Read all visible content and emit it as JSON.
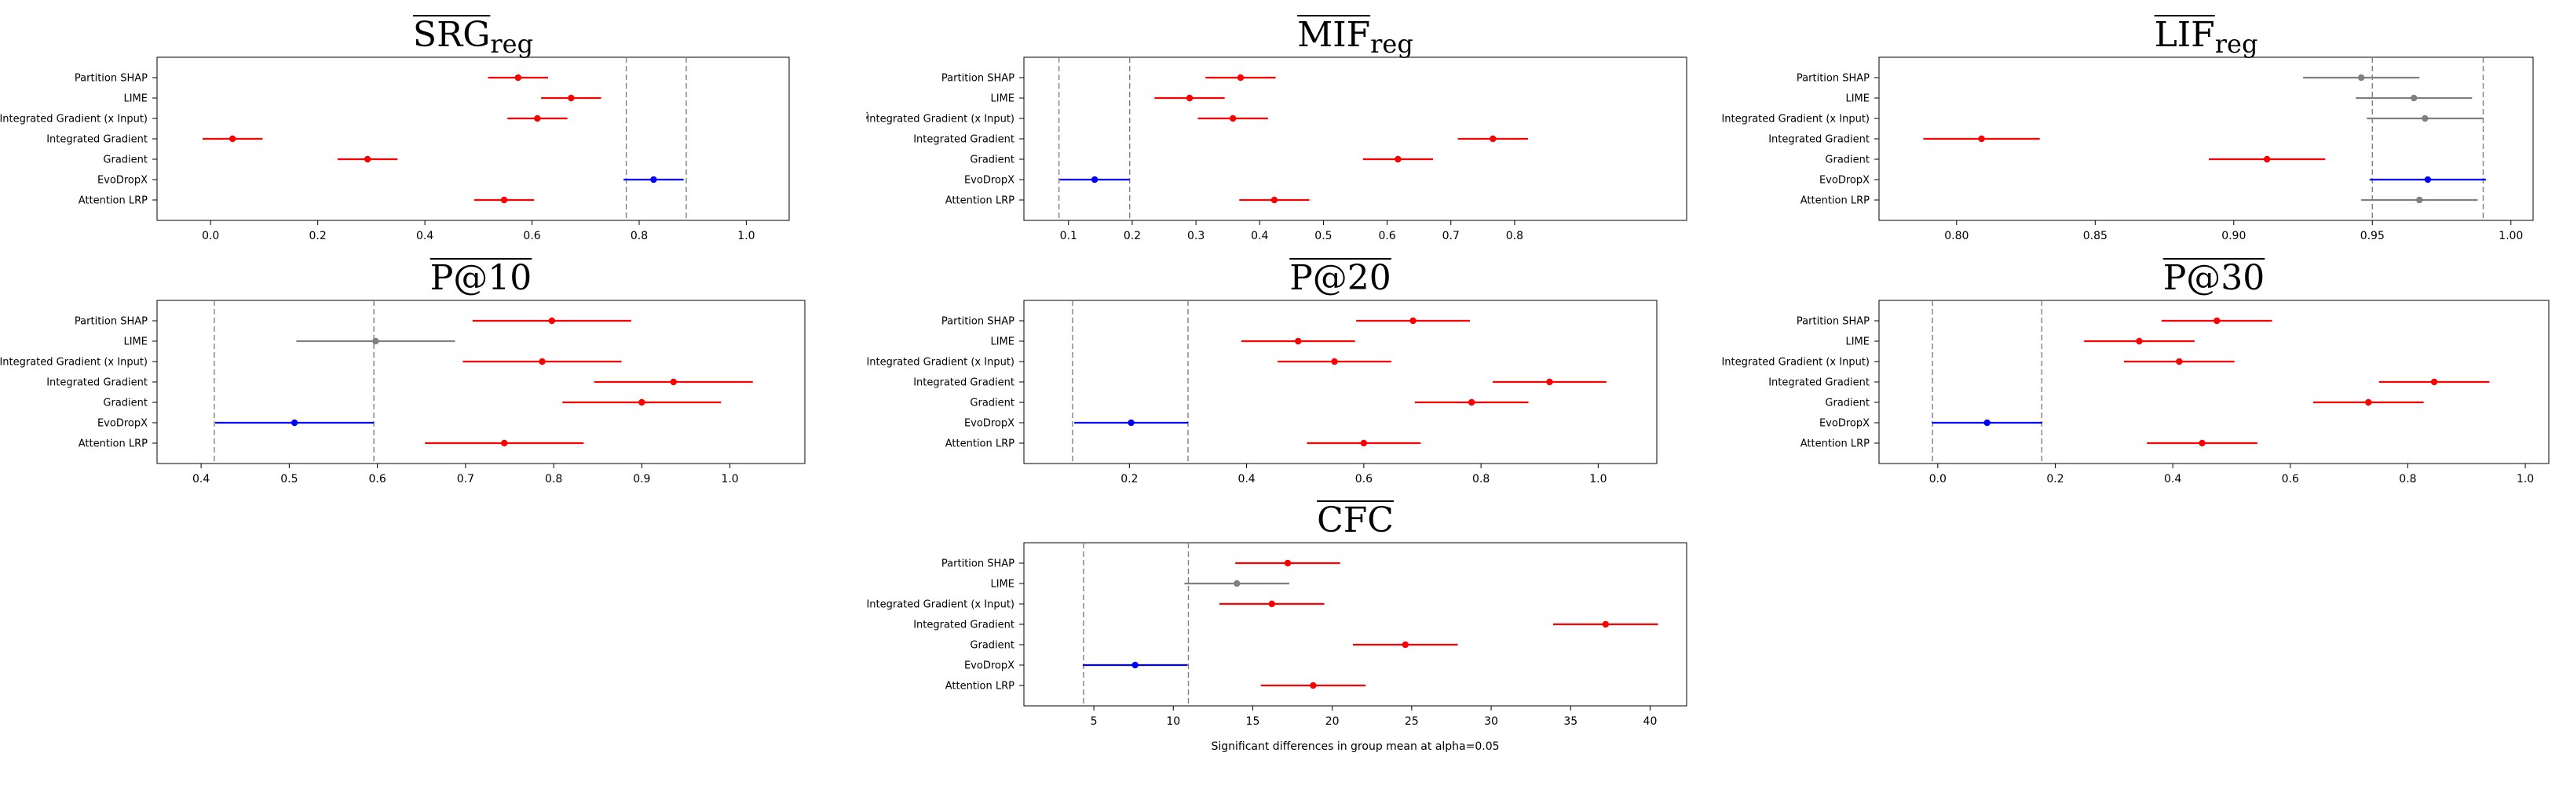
{
  "figure_note": ";",
  "chart_data": [
    {
      "type": "errorbar",
      "title": "SRG",
      "title_sub": "reg",
      "xlabel": "",
      "xlim": [
        -0.1,
        1.08
      ],
      "xticks": [
        0.0,
        0.2,
        0.4,
        0.6,
        0.8,
        1.0
      ],
      "xticklabels": [
        "0.0",
        "0.2",
        "0.4",
        "0.6",
        "0.8",
        "1.0"
      ],
      "ref_lines": [
        0.776,
        0.888
      ],
      "categories": [
        "Partition SHAP",
        "LIME",
        "Integrated Gradient (x Input)",
        "Integrated Gradient",
        "Gradient",
        "EvoDropX",
        "Attention LRP"
      ],
      "means": [
        0.574,
        0.673,
        0.61,
        0.041,
        0.293,
        0.827,
        0.548
      ],
      "half_width": 0.056,
      "status": [
        "sig",
        "sig",
        "sig",
        "sig",
        "sig",
        "ref",
        "sig"
      ]
    },
    {
      "type": "errorbar",
      "title": "MIF",
      "title_sub": "reg",
      "xlabel": "",
      "xlim": [
        0.03,
        1.07
      ],
      "xticks": [
        0.1,
        0.2,
        0.3,
        0.4,
        0.5,
        0.6,
        0.7,
        0.8
      ],
      "xticklabels": [
        "0.1",
        "0.2",
        "0.3",
        "0.4",
        "0.5",
        "0.6",
        "0.7",
        "0.8"
      ],
      "ref_lines": [
        0.085,
        0.196
      ],
      "categories": [
        "Partition SHAP",
        "LIME",
        "Integrated Gradient (x Input)",
        "Integrated Gradient",
        "Gradient",
        "EvoDropX",
        "Attention LRP"
      ],
      "means": [
        0.37,
        0.29,
        0.358,
        0.766,
        0.617,
        0.141,
        0.423
      ],
      "half_width": 0.055,
      "status": [
        "sig",
        "sig",
        "sig",
        "sig",
        "sig",
        "ref",
        "sig"
      ]
    },
    {
      "type": "errorbar",
      "title": "LIF",
      "title_sub": "reg",
      "xlabel": "",
      "xlim": [
        0.772,
        1.008
      ],
      "xticks": [
        0.8,
        0.85,
        0.9,
        0.95,
        1.0
      ],
      "xticklabels": [
        "0.80",
        "0.85",
        "0.90",
        "0.95",
        "1.00"
      ],
      "ref_lines": [
        0.95,
        0.99
      ],
      "categories": [
        "Partition SHAP",
        "LIME",
        "Integrated Gradient (x Input)",
        "Integrated Gradient",
        "Gradient",
        "EvoDropX",
        "Attention LRP"
      ],
      "means": [
        0.946,
        0.965,
        0.969,
        0.809,
        0.912,
        0.97,
        0.967
      ],
      "half_width": 0.021,
      "status": [
        "ns",
        "ns",
        "ns",
        "sig",
        "sig",
        "ref",
        "ns"
      ]
    },
    {
      "type": "errorbar",
      "title": "P@10",
      "title_sub": "",
      "xlabel": "",
      "xlim": [
        0.35,
        1.085
      ],
      "xticks": [
        0.4,
        0.5,
        0.6,
        0.7,
        0.8,
        0.9,
        1.0
      ],
      "xticklabels": [
        "0.4",
        "0.5",
        "0.6",
        "0.7",
        "0.8",
        "0.9",
        "1.0"
      ],
      "ref_lines": [
        0.415,
        0.596
      ],
      "categories": [
        "Partition SHAP",
        "LIME",
        "Integrated Gradient (x Input)",
        "Integrated Gradient",
        "Gradient",
        "EvoDropX",
        "Attention LRP"
      ],
      "means": [
        0.798,
        0.598,
        0.787,
        0.936,
        0.9,
        0.506,
        0.744
      ],
      "half_width": 0.09,
      "status": [
        "sig",
        "ns",
        "sig",
        "sig",
        "sig",
        "ref",
        "sig"
      ]
    },
    {
      "type": "errorbar",
      "title": "P@20",
      "title_sub": "",
      "xlabel": "",
      "xlim": [
        0.02,
        1.1
      ],
      "xticks": [
        0.2,
        0.4,
        0.6,
        0.8,
        1.0
      ],
      "xticklabels": [
        "0.2",
        "0.4",
        "0.6",
        "0.8",
        "1.0"
      ],
      "ref_lines": [
        0.103,
        0.3
      ],
      "categories": [
        "Partition SHAP",
        "LIME",
        "Integrated Gradient (x Input)",
        "Integrated Gradient",
        "Gradient",
        "EvoDropX",
        "Attention LRP"
      ],
      "means": [
        0.684,
        0.488,
        0.55,
        0.917,
        0.784,
        0.203,
        0.6
      ],
      "half_width": 0.097,
      "status": [
        "sig",
        "sig",
        "sig",
        "sig",
        "sig",
        "ref",
        "sig"
      ]
    },
    {
      "type": "errorbar",
      "title": "P@30",
      "title_sub": "",
      "xlabel": "",
      "xlim": [
        -0.1,
        1.04
      ],
      "xticks": [
        0.0,
        0.2,
        0.4,
        0.6,
        0.8,
        1.0
      ],
      "xticklabels": [
        "0.0",
        "0.2",
        "0.4",
        "0.6",
        "0.8",
        "1.0"
      ],
      "ref_lines": [
        -0.009,
        0.177
      ],
      "categories": [
        "Partition SHAP",
        "LIME",
        "Integrated Gradient (x Input)",
        "Integrated Gradient",
        "Gradient",
        "EvoDropX",
        "Attention LRP"
      ],
      "means": [
        0.475,
        0.343,
        0.411,
        0.845,
        0.733,
        0.084,
        0.45
      ],
      "half_width": 0.094,
      "status": [
        "sig",
        "sig",
        "sig",
        "sig",
        "sig",
        "ref",
        "sig"
      ]
    },
    {
      "type": "errorbar",
      "title": "CFC",
      "title_sub": "",
      "xlabel": "Significant differences in group mean at alpha=0.05",
      "xlim": [
        0.6,
        42.3
      ],
      "xticks": [
        5,
        10,
        15,
        20,
        25,
        30,
        35,
        40
      ],
      "xticklabels": [
        "5",
        "10",
        "15",
        "20",
        "25",
        "30",
        "35",
        "40"
      ],
      "ref_lines": [
        4.35,
        10.95
      ],
      "categories": [
        "Partition SHAP",
        "LIME",
        "Integrated Gradient (x Input)",
        "Integrated Gradient",
        "Gradient",
        "EvoDropX",
        "Attention LRP"
      ],
      "means": [
        17.2,
        14.0,
        16.2,
        37.2,
        24.6,
        7.6,
        18.8
      ],
      "half_width": 3.3,
      "status": [
        "sig",
        "ns",
        "sig",
        "sig",
        "sig",
        "ref",
        "sig"
      ]
    }
  ],
  "colors": {
    "sig": "#ff0000",
    "ns": "#808080",
    "ref": "#0000ff",
    "refline": "#808080",
    "frame": "#000000"
  }
}
